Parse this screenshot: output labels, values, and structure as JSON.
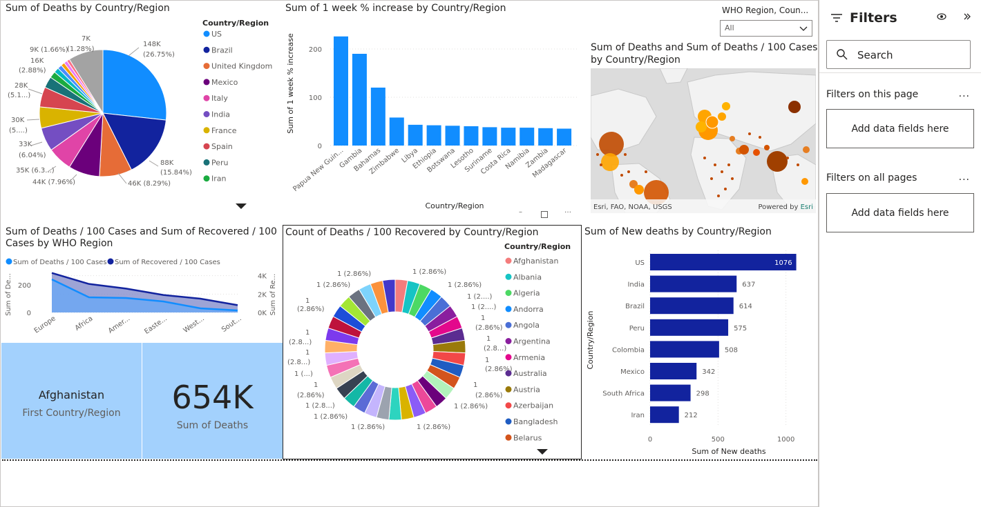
{
  "pie": {
    "title": "Sum of Deaths by Country/Region",
    "legend_title": "Country/Region",
    "legend": [
      {
        "name": "US",
        "color": "#118DFF"
      },
      {
        "name": "Brazil",
        "color": "#12239E"
      },
      {
        "name": "United Kingdom",
        "color": "#E66C37"
      },
      {
        "name": "Mexico",
        "color": "#6B007B"
      },
      {
        "name": "Italy",
        "color": "#E044A7"
      },
      {
        "name": "India",
        "color": "#744EC2"
      },
      {
        "name": "France",
        "color": "#D9B300"
      },
      {
        "name": "Spain",
        "color": "#D64550"
      },
      {
        "name": "Peru",
        "color": "#197278"
      },
      {
        "name": "Iran",
        "color": "#1AAB40"
      }
    ],
    "labels": [
      "148K",
      "(26.75%)",
      "88K",
      "(15.84%)",
      "46K (8.29%)",
      "44K (7.96%)",
      "35K (6.3...)",
      "33K",
      "(6.04%)",
      "30K",
      "(5....)",
      "28K",
      "(5.1...)",
      "16K",
      "(2.88%)",
      "9K (1.66%)",
      "(1.28%)",
      "7K"
    ]
  },
  "bar1": {
    "title": "Sum of 1 week % increase by Country/Region",
    "ylabel": "Sum of 1 week % increase",
    "xlabel": "Country/Region",
    "yticks": [
      "200",
      "100",
      "0"
    ]
  },
  "slicer": {
    "label": "WHO Region, Coun...",
    "value": "All"
  },
  "map": {
    "title_line1": "Sum of Deaths and Sum of Deaths / 100 Cases",
    "title_line2": "by Country/Region",
    "attribution": "Esri, FAO, NOAA, USGS",
    "powered": "Powered by ",
    "esri": "Esri"
  },
  "area": {
    "title_line1": "Sum of Deaths / 100 Cases and Sum of Recovered / 100",
    "title_line2": "Cases by WHO Region",
    "legend1": "Sum of Deaths / 100 Cases",
    "legend2": "Sum of Recovered / 100 Cases",
    "y1label": "Sum of De...",
    "y2label": "Sum of Re...",
    "y1ticks": [
      "200",
      "0"
    ],
    "y2ticks": [
      "4K",
      "2K",
      "0K"
    ],
    "colors": {
      "s1": "#118DFF",
      "s2": "#12239E"
    }
  },
  "cards": {
    "country": "Afghanistan",
    "country_label": "First Country/Region",
    "deaths": "654K",
    "deaths_label": "Sum of Deaths"
  },
  "donut": {
    "title": "Count of Deaths / 100 Recovered by Country/Region",
    "legend_title": "Country/Region",
    "legend": [
      {
        "name": "Afghanistan",
        "color": "#F47C7C"
      },
      {
        "name": "Albania",
        "color": "#16C4C4"
      },
      {
        "name": "Algeria",
        "color": "#4CD964"
      },
      {
        "name": "Andorra",
        "color": "#118DFF"
      },
      {
        "name": "Angola",
        "color": "#4A6FD6"
      },
      {
        "name": "Argentina",
        "color": "#8A1E9E"
      },
      {
        "name": "Armenia",
        "color": "#E3088C"
      },
      {
        "name": "Australia",
        "color": "#5B2C91"
      },
      {
        "name": "Austria",
        "color": "#9A7A0A"
      },
      {
        "name": "Azerbaijan",
        "color": "#F24848"
      },
      {
        "name": "Bangladesh",
        "color": "#1F5CC2"
      },
      {
        "name": "Belarus",
        "color": "#D3541C"
      }
    ],
    "labels": [
      "1 (2.86%)",
      "1 (2.86%)",
      "1 (2....)",
      "1 (2....)",
      "1",
      "(2.86%)",
      "1",
      "(2.8...)",
      "1",
      "(2.86%)",
      "1",
      "(2.86%)",
      "1 (2.86%)",
      "1 (2.86%)",
      "1 (2.86%)",
      "1 (2.86%)",
      "1 (2.8...)",
      "1",
      "(2.86%)",
      "1 (...)",
      "1",
      "(2.8...)",
      "1",
      "(2.8...)",
      "1",
      "(2.86%)",
      "1 (2.86%)",
      "1 (2.86%)"
    ]
  },
  "hbar": {
    "title": "Sum of New deaths by Country/Region",
    "ylabel": "Country/Region",
    "xlabel": "Sum of New deaths",
    "xticks": [
      "0",
      "500",
      "1000"
    ],
    "color": "#12239E"
  },
  "filters": {
    "title": "Filters",
    "search": "Search",
    "on_page": "Filters on this page",
    "on_all": "Filters on all pages",
    "add1": "Add data fields here",
    "add2": "Add data fields here",
    "more": "..."
  },
  "chart_data": [
    {
      "type": "bar",
      "title": "Sum of 1 week % increase by Country/Region",
      "xlabel": "Country/Region",
      "ylabel": "Sum of 1 week % increase",
      "categories": [
        "Papua New Guin...",
        "Gambia",
        "Bahamas",
        "Zimbabwe",
        "Libya",
        "Ethiopia",
        "Botswana",
        "Lesotho",
        "Suriname",
        "Costa Rica",
        "Namibia",
        "Zambia",
        "Madagascar"
      ],
      "values": [
        226,
        190,
        120,
        58,
        43,
        42,
        41,
        40,
        38,
        37,
        37,
        36,
        35
      ],
      "ylim": [
        0,
        250
      ],
      "color": "#118DFF"
    },
    {
      "type": "bar",
      "orientation": "horizontal",
      "title": "Sum of New deaths by Country/Region",
      "xlabel": "Sum of New deaths",
      "ylabel": "Country/Region",
      "categories": [
        "US",
        "India",
        "Brazil",
        "Peru",
        "Colombia",
        "Mexico",
        "South Africa",
        "Iran"
      ],
      "values": [
        1076,
        637,
        614,
        575,
        508,
        342,
        298,
        212
      ],
      "xlim": [
        0,
        1100
      ]
    },
    {
      "type": "area",
      "title": "Sum of Deaths / 100 Cases and Sum of Recovered / 100 Cases by WHO Region",
      "categories": [
        "Europe",
        "Africa",
        "Amer...",
        "Easte...",
        "West...",
        "Sout..."
      ],
      "series": [
        {
          "name": "Sum of Deaths / 100 Cases",
          "values": [
            240,
            110,
            105,
            80,
            30,
            15
          ],
          "axis": "left"
        },
        {
          "name": "Sum of Recovered / 100 Cases",
          "values": [
            4300,
            3100,
            2600,
            1900,
            1500,
            800
          ],
          "axis": "right"
        }
      ],
      "ylim": [
        0,
        300
      ],
      "y2lim": [
        0,
        4500
      ]
    },
    {
      "type": "pie",
      "title": "Sum of Deaths by Country/Region",
      "categories": [
        "US",
        "Brazil",
        "United Kingdom",
        "Mexico",
        "Italy",
        "India",
        "France",
        "Spain",
        "Peru",
        "Iran"
      ],
      "values": [
        26.75,
        15.84,
        8.29,
        7.96,
        6.3,
        6.04,
        5.4,
        5.1,
        2.88,
        1.66
      ]
    },
    {
      "type": "pie",
      "donut": true,
      "title": "Count of Deaths / 100 Recovered by Country/Region",
      "slice_count": 35,
      "slice_value": 1,
      "slice_percent": 2.86
    }
  ]
}
